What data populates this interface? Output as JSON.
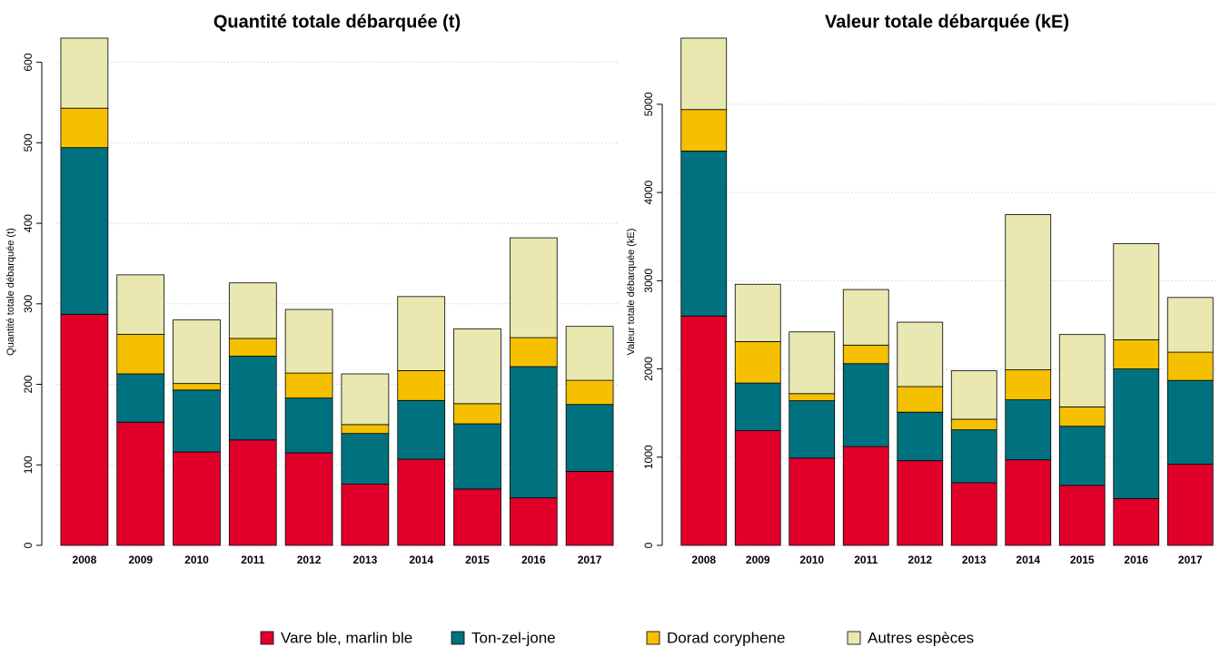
{
  "chart_data": [
    {
      "type": "bar",
      "stacked": true,
      "title": "Quantité totale débarquée (t)",
      "y_label": "Quantité totale débarquée (t)",
      "categories": [
        "2008",
        "2009",
        "2010",
        "2011",
        "2012",
        "2013",
        "2014",
        "2015",
        "2016",
        "2017"
      ],
      "series": [
        {
          "name": "Vare ble, marlin ble",
          "color": "#e0002a",
          "values": [
            287,
            153,
            116,
            131,
            115,
            76,
            107,
            70,
            59,
            92
          ]
        },
        {
          "name": "Ton-zel-jone",
          "color": "#00727f",
          "values": [
            207,
            60,
            77,
            104,
            68,
            63,
            73,
            81,
            163,
            83
          ]
        },
        {
          "name": "Dorad coryphene",
          "color": "#f5c000",
          "values": [
            49,
            49,
            8,
            22,
            31,
            11,
            37,
            25,
            36,
            30
          ]
        },
        {
          "name": "Autres espèces",
          "color": "#e8e8b0",
          "values": [
            87,
            74,
            79,
            69,
            79,
            63,
            92,
            93,
            124,
            67
          ]
        }
      ],
      "ylim": [
        0,
        630
      ],
      "yticks": [
        0,
        100,
        200,
        300,
        400,
        500,
        600
      ],
      "grid": true
    },
    {
      "type": "bar",
      "stacked": true,
      "title": "Valeur totale débarquée (kE)",
      "y_label": "Valeur totale débarquée (kE)",
      "categories": [
        "2008",
        "2009",
        "2010",
        "2011",
        "2012",
        "2013",
        "2014",
        "2015",
        "2016",
        "2017"
      ],
      "series": [
        {
          "color": "#e0002a",
          "values": [
            2600,
            1300,
            990,
            1120,
            960,
            710,
            970,
            680,
            530,
            920
          ]
        },
        {
          "color": "#00727f",
          "values": [
            1870,
            540,
            650,
            940,
            550,
            600,
            680,
            670,
            1470,
            950
          ]
        },
        {
          "color": "#f5c000",
          "values": [
            470,
            470,
            80,
            210,
            290,
            120,
            340,
            220,
            330,
            320
          ]
        },
        {
          "color": "#e8e8b0",
          "values": [
            810,
            650,
            700,
            630,
            730,
            550,
            1760,
            820,
            1090,
            620
          ]
        }
      ],
      "ylim": [
        0,
        5750
      ],
      "yticks": [
        0,
        1000,
        2000,
        3000,
        4000,
        5000
      ],
      "grid": true
    }
  ]
}
